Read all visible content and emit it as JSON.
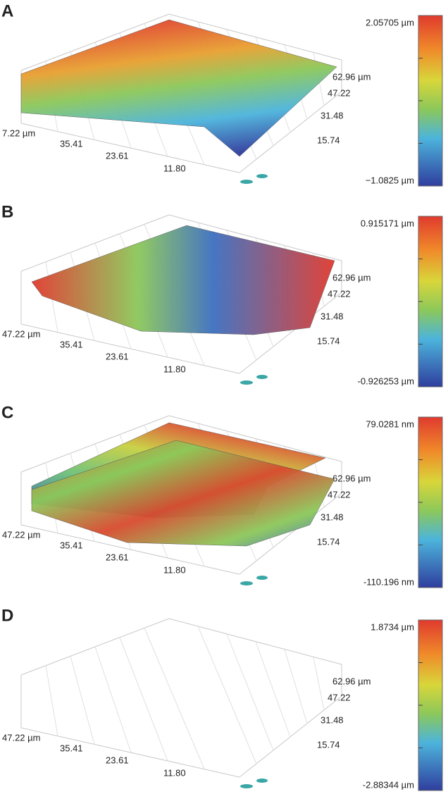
{
  "panels": [
    {
      "label": "A",
      "scale_max": "2.05705 µm",
      "scale_min": "−1.0825 µm",
      "x_ticks": [
        "7.22 µm",
        "35.41",
        "23.61",
        "11.80"
      ],
      "y_ticks": [
        "62.96 µm",
        "47.22",
        "31.48",
        "15.74"
      ]
    },
    {
      "label": "B",
      "scale_max": "0.915171 µm",
      "scale_min": "-0.926253 µm",
      "x_ticks": [
        "47.22 µm",
        "35.41",
        "23.61",
        "11.80"
      ],
      "y_ticks": [
        "62.96 µm",
        "47.22",
        "31.48",
        "15.74"
      ]
    },
    {
      "label": "C",
      "scale_max": "79.0281 nm",
      "scale_min": "-110.196 nm",
      "x_ticks": [
        "47.22 µm",
        "35.41",
        "23.61",
        "11.80"
      ],
      "y_ticks": [
        "62.96 µm",
        "47.22",
        "31.48",
        "15.74"
      ]
    },
    {
      "label": "D",
      "scale_max": "1.8734 µm",
      "scale_min": "-2.88344 µm",
      "x_ticks": [
        "47.22 µm",
        "35.41",
        "23.61",
        "11.80"
      ],
      "y_ticks": [
        "62.96 µm",
        "47.22",
        "31.48",
        "15.74"
      ]
    }
  ]
}
